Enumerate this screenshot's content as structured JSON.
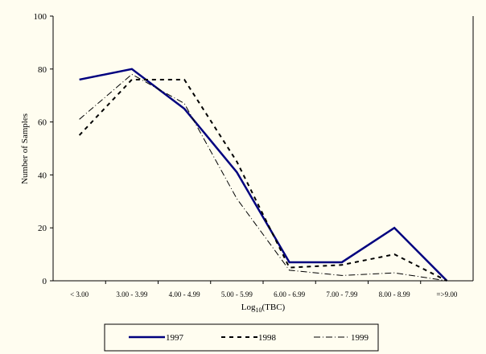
{
  "chart_data": {
    "type": "line",
    "title": "",
    "xlabel": "Log10(TBC)",
    "xlabel_main": "Log",
    "xlabel_sub": "10",
    "xlabel_tail": "(TBC)",
    "ylabel": "Number of Samples",
    "ylim": [
      0,
      100
    ],
    "yticks": [
      0,
      20,
      40,
      60,
      80,
      100
    ],
    "categories": [
      "< 3.00",
      "3.00 - 3.99",
      "4.00 - 4.99",
      "5.00 - 5.99",
      "6.00 - 6.99",
      "7.00 - 7.99",
      "8.00 - 8.99",
      "=>9.00"
    ],
    "legend_position": "bottom",
    "series": [
      {
        "name": "1997",
        "values": [
          76,
          80,
          65,
          41,
          7,
          7,
          20,
          0
        ],
        "color": "#00007f",
        "style": "solid"
      },
      {
        "name": "1998",
        "values": [
          55,
          76,
          76,
          45,
          5,
          6,
          10,
          0
        ],
        "color": "#000000",
        "style": "dashed"
      },
      {
        "name": "1999",
        "values": [
          61,
          78,
          67,
          31,
          4,
          2,
          3,
          0
        ],
        "color": "#000000",
        "style": "dashdot"
      }
    ]
  }
}
